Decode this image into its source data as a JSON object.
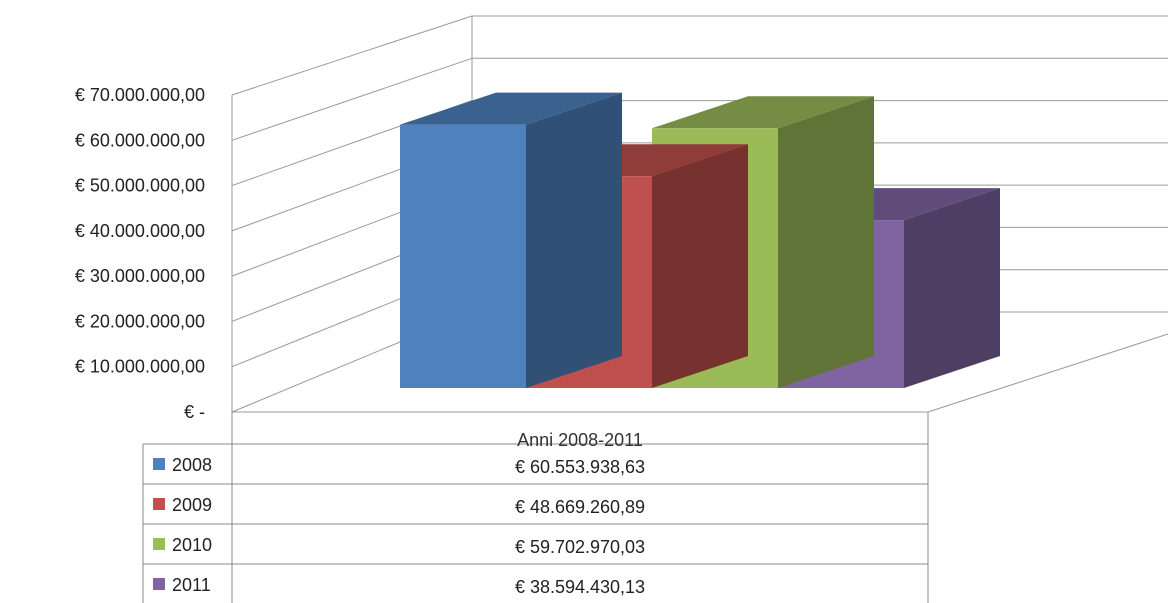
{
  "chart_data": {
    "type": "bar",
    "title": "",
    "xlabel": "",
    "ylabel": "",
    "categories": [
      "Anni 2008-2011"
    ],
    "series": [
      {
        "name": "2008",
        "values": [
          60553938.63
        ],
        "value_label": "€ 60.553.938,63",
        "color": "#4f81bd"
      },
      {
        "name": "2009",
        "values": [
          48669260.89
        ],
        "value_label": "€ 48.669.260,89",
        "color": "#c0504d"
      },
      {
        "name": "2010",
        "values": [
          59702970.03
        ],
        "value_label": "€ 59.702.970,03",
        "color": "#9bbb59"
      },
      {
        "name": "2011",
        "values": [
          38594430.13
        ],
        "value_label": "€ 38.594.430,13",
        "color": "#8064a2"
      }
    ],
    "ylim": [
      0,
      70000000
    ],
    "y_ticks": [
      {
        "value": 0,
        "label": "€ -"
      },
      {
        "value": 10000000,
        "label": "€ 10.000.000,00"
      },
      {
        "value": 20000000,
        "label": "€ 20.000.000,00"
      },
      {
        "value": 30000000,
        "label": "€ 30.000.000,00"
      },
      {
        "value": 40000000,
        "label": "€ 40.000.000,00"
      },
      {
        "value": 50000000,
        "label": "€ 50.000.000,00"
      },
      {
        "value": 60000000,
        "label": "€ 60.000.000,00"
      },
      {
        "value": 70000000,
        "label": "€ 70.000.000,00"
      }
    ],
    "grid": true,
    "style": "3d-clustered",
    "legend": "data-table-below"
  }
}
